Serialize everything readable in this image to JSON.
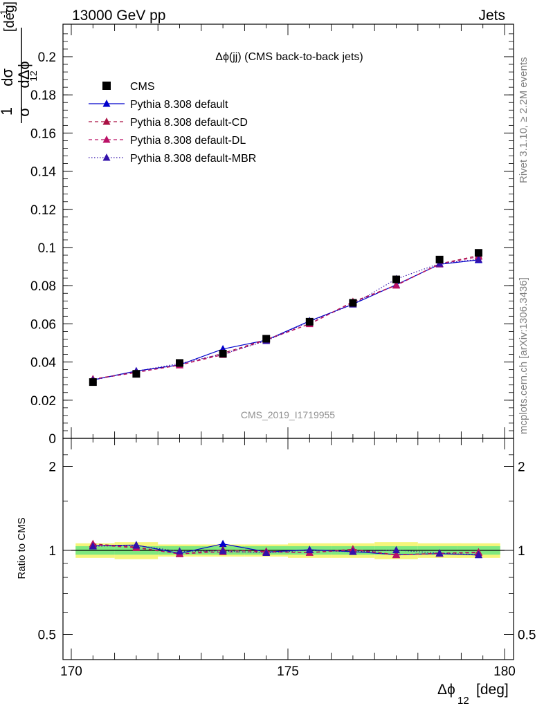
{
  "header": {
    "left": "13000 GeV pp",
    "right": "Jets"
  },
  "side_labels": {
    "top": "Rivet 3.1.10, ≥ 2.2M events",
    "bottom": "mcplots.cern.ch [arXiv:1306.3436]"
  },
  "analysis_id": "CMS_2019_I1719955",
  "colors": {
    "CMS": "#000000",
    "Pythia 8.308 default": "#0000cc",
    "Pythia 8.308 default-CD": "#aa1144",
    "Pythia 8.308 default-DL": "#bb1166",
    "Pythia 8.308 default-MBR": "#3311aa",
    "band_inner": "#7fe87f",
    "band_outer": "#f5f57a"
  },
  "chart_data": [
    {
      "type": "line",
      "title": "Δϕ(jj) (CMS back-to-back jets)",
      "ylabel": "1/σ dσ/dΔϕ₁₂ [deg⁻¹]",
      "xlim": [
        170,
        180
      ],
      "ylim": [
        0,
        0.215
      ],
      "yticks": [
        "0",
        "0.02",
        "0.04",
        "0.06",
        "0.08",
        "0.1",
        "0.12",
        "0.14",
        "0.16",
        "0.18",
        "0.2"
      ],
      "legend_position": "top-left",
      "x": [
        170.5,
        171.5,
        172.5,
        173.5,
        174.5,
        175.5,
        176.5,
        177.5,
        178.5,
        179.4
      ],
      "series": [
        {
          "name": "CMS",
          "style": "markers-square",
          "values": [
            0.0295,
            0.0338,
            0.0395,
            0.0444,
            0.0522,
            0.0611,
            0.071,
            0.0833,
            0.0937,
            0.0972
          ]
        },
        {
          "name": "Pythia 8.308 default",
          "style": "solid",
          "values": [
            0.0306,
            0.0353,
            0.0385,
            0.0468,
            0.0515,
            0.0615,
            0.0703,
            0.0805,
            0.0912,
            0.0935
          ]
        },
        {
          "name": "Pythia 8.308 default-CD",
          "style": "dashed",
          "values": [
            0.0311,
            0.0347,
            0.0383,
            0.0446,
            0.0518,
            0.06,
            0.0716,
            0.0803,
            0.0915,
            0.0958
          ]
        },
        {
          "name": "Pythia 8.308 default-DL",
          "style": "dashed",
          "values": [
            0.0309,
            0.0345,
            0.0384,
            0.0438,
            0.0516,
            0.0599,
            0.0713,
            0.0801,
            0.0913,
            0.0952
          ]
        },
        {
          "name": "Pythia 8.308 default-MBR",
          "style": "dotted",
          "values": [
            0.0305,
            0.0352,
            0.0392,
            0.0442,
            0.0511,
            0.0612,
            0.0702,
            0.0835,
            0.0916,
            0.0938
          ]
        }
      ]
    },
    {
      "type": "line",
      "ylabel": "Ratio to CMS",
      "xlabel": "Δϕ₁₂ [deg]",
      "xlim": [
        170,
        180
      ],
      "ylim": [
        0.37,
        2.3
      ],
      "scale": "log",
      "yticks": [
        "0.5",
        "1",
        "2"
      ],
      "xticks": [
        "170",
        "175",
        "180"
      ],
      "x": [
        170.5,
        171.5,
        172.5,
        173.5,
        174.5,
        175.5,
        176.5,
        177.5,
        178.5,
        179.4
      ],
      "band_inner_halfwidth": [
        0.035,
        0.035,
        0.035,
        0.035,
        0.035,
        0.035,
        0.035,
        0.035,
        0.035,
        0.035
      ],
      "band_outer_halfwidth": [
        0.06,
        0.07,
        0.05,
        0.05,
        0.05,
        0.06,
        0.06,
        0.07,
        0.06,
        0.06
      ],
      "series": [
        {
          "name": "Pythia 8.308 default",
          "style": "solid",
          "values": [
            1.04,
            1.045,
            0.975,
            1.055,
            0.987,
            1.005,
            0.99,
            0.966,
            0.973,
            0.962
          ]
        },
        {
          "name": "Pythia 8.308 default-CD",
          "style": "dashed",
          "values": [
            1.055,
            1.027,
            0.97,
            1.004,
            0.992,
            0.982,
            1.01,
            0.964,
            0.977,
            0.985
          ]
        },
        {
          "name": "Pythia 8.308 default-DL",
          "style": "dashed",
          "values": [
            1.047,
            1.021,
            0.972,
            0.987,
            0.988,
            0.981,
            1.004,
            0.962,
            0.975,
            0.98
          ]
        },
        {
          "name": "Pythia 8.308 default-MBR",
          "style": "dotted",
          "values": [
            1.034,
            1.041,
            0.992,
            0.995,
            0.98,
            1.002,
            0.988,
            1.002,
            0.977,
            0.965
          ]
        }
      ]
    }
  ]
}
